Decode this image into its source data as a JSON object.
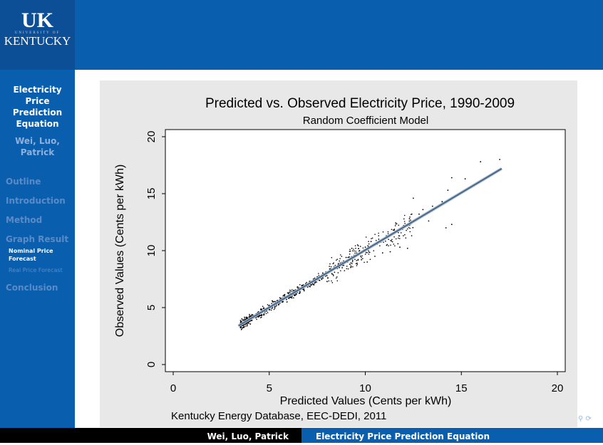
{
  "logo": {
    "text": "UK",
    "sub": "UNIVERSITY OF",
    "name": "KENTUCKY"
  },
  "sidebar": {
    "title": "Electricity Price Prediction Equation",
    "authors": "Wei, Luo, Patrick",
    "items": [
      {
        "label": "Outline"
      },
      {
        "label": "Introduction"
      },
      {
        "label": "Method"
      },
      {
        "label": "Graph Result"
      },
      {
        "label": "Nominal Price Forecast"
      },
      {
        "label": "Real Price Forecast"
      },
      {
        "label": "Conclusion"
      }
    ]
  },
  "footer": {
    "left": "Wei, Luo, Patrick",
    "right": "Electricity Price Prediction Equation"
  },
  "colors": {
    "accent": "#0a5eae",
    "fit_line": "#4a6a8c"
  },
  "chart_data": {
    "type": "scatter",
    "title": "Predicted vs. Observed Electricity Price, 1990-2009",
    "subtitle": "Random Coefficient Model",
    "xlabel": "Predicted Values (Cents per kWh)",
    "ylabel": "Observed Values (Cents per kWh)",
    "note": "Kentucky Energy Database, EEC-DEDI, 2011",
    "xlim": [
      0,
      20
    ],
    "ylim": [
      0,
      20
    ],
    "xticks": [
      0,
      5,
      10,
      15,
      20
    ],
    "yticks": [
      0,
      5,
      10,
      15,
      20
    ],
    "grid": false,
    "fit_line": {
      "x": [
        3.4,
        17.1
      ],
      "y": [
        3.4,
        17.2
      ]
    },
    "points": [
      [
        3.5,
        3.6
      ],
      [
        3.8,
        3.9
      ],
      [
        4.0,
        4.2
      ],
      [
        4.2,
        4.1
      ],
      [
        4.4,
        4.5
      ],
      [
        4.5,
        4.3
      ],
      [
        4.6,
        4.8
      ],
      [
        4.8,
        4.7
      ],
      [
        5.0,
        5.2
      ],
      [
        5.0,
        4.8
      ],
      [
        5.1,
        5.0
      ],
      [
        5.2,
        5.5
      ],
      [
        5.3,
        5.1
      ],
      [
        5.4,
        5.6
      ],
      [
        5.5,
        5.3
      ],
      [
        5.6,
        5.8
      ],
      [
        5.7,
        5.5
      ],
      [
        5.8,
        6.0
      ],
      [
        5.9,
        5.7
      ],
      [
        6.0,
        6.3
      ],
      [
        6.1,
        5.9
      ],
      [
        6.2,
        6.1
      ],
      [
        6.3,
        6.5
      ],
      [
        6.4,
        6.2
      ],
      [
        6.5,
        6.7
      ],
      [
        6.6,
        6.4
      ],
      [
        6.7,
        6.9
      ],
      [
        6.8,
        6.6
      ],
      [
        6.9,
        7.1
      ],
      [
        7.0,
        6.8
      ],
      [
        7.1,
        7.3
      ],
      [
        7.2,
        7.0
      ],
      [
        7.3,
        7.5
      ],
      [
        7.4,
        7.2
      ],
      [
        7.5,
        7.7
      ],
      [
        7.6,
        7.4
      ],
      [
        7.8,
        8.0
      ],
      [
        8.0,
        7.8
      ],
      [
        8.2,
        8.4
      ],
      [
        8.4,
        8.1
      ],
      [
        8.6,
        8.8
      ],
      [
        8.8,
        8.5
      ],
      [
        9.0,
        9.4
      ],
      [
        9.2,
        8.8
      ],
      [
        9.3,
        10.2
      ],
      [
        9.5,
        9.6
      ],
      [
        9.6,
        10.5
      ],
      [
        9.8,
        9.2
      ],
      [
        10.0,
        10.3
      ],
      [
        10.1,
        9.0
      ],
      [
        10.3,
        10.8
      ],
      [
        10.5,
        9.5
      ],
      [
        10.7,
        11.0
      ],
      [
        10.9,
        9.8
      ],
      [
        11.1,
        11.3
      ],
      [
        11.3,
        9.9
      ],
      [
        11.5,
        11.8
      ],
      [
        11.7,
        10.6
      ],
      [
        11.8,
        10.3
      ],
      [
        12.0,
        12.2
      ],
      [
        12.2,
        10.2
      ],
      [
        12.3,
        12.8
      ],
      [
        12.5,
        14.6
      ],
      [
        12.8,
        13.2
      ],
      [
        13.0,
        13.6
      ],
      [
        13.3,
        12.6
      ],
      [
        13.5,
        13.9
      ],
      [
        14.0,
        14.3
      ],
      [
        14.2,
        12.0
      ],
      [
        14.3,
        15.3
      ],
      [
        14.5,
        12.3
      ],
      [
        14.5,
        16.4
      ],
      [
        14.8,
        14.9
      ],
      [
        15.2,
        16.3
      ],
      [
        15.5,
        15.6
      ],
      [
        16.0,
        17.8
      ],
      [
        16.5,
        16.6
      ],
      [
        17.0,
        18.0
      ]
    ]
  }
}
